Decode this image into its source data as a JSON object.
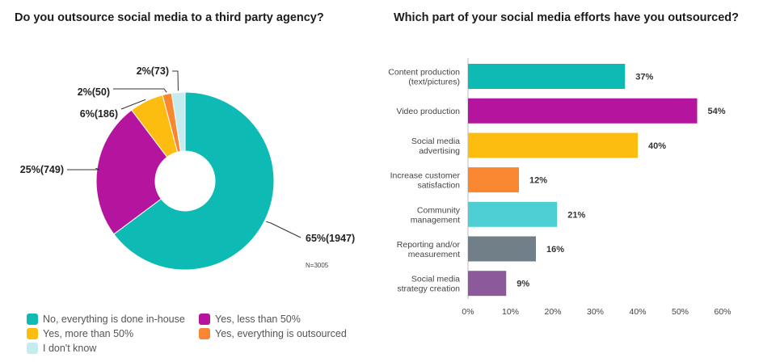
{
  "chart_data": [
    {
      "type": "pie",
      "title": "Do you outsource social media to a third party agency?",
      "note": "N=3005",
      "colors": [
        "#0dbbb4",
        "#b5149e",
        "#fdbd10",
        "#f98731",
        "#c4ecef"
      ],
      "slices": [
        {
          "name": "No, everything is done in-house",
          "value": 1947,
          "label": "65%(1947)"
        },
        {
          "name": "Yes, less than 50%",
          "value": 749,
          "label": "25%(749)"
        },
        {
          "name": "Yes, more than 50%",
          "value": 186,
          "label": "6%(186)"
        },
        {
          "name": "Yes, everything is outsourced",
          "value": 50,
          "label": "2%(50)"
        },
        {
          "name": "I don't know",
          "value": 73,
          "label": "2%(73)"
        }
      ],
      "legend_position": "bottom"
    },
    {
      "type": "bar",
      "orientation": "horizontal",
      "title": "Which part of your social media efforts have you outsourced?",
      "categories": [
        [
          "Content production",
          "(text/pictures)"
        ],
        [
          "Video production"
        ],
        [
          "Social media",
          "advertising"
        ],
        [
          "Increase customer",
          "satisfaction"
        ],
        [
          "Community",
          "management"
        ],
        [
          "Reporting and/or",
          "measurement"
        ],
        [
          "Social media",
          "strategy creation"
        ]
      ],
      "values": [
        37,
        54,
        40,
        12,
        21,
        16,
        9
      ],
      "value_labels": [
        "37%",
        "54%",
        "40%",
        "12%",
        "21%",
        "16%",
        "9%"
      ],
      "colors": [
        "#0dbbb4",
        "#b5149e",
        "#fdbd10",
        "#f98731",
        "#4cced2",
        "#707f88",
        "#8c5a9a"
      ],
      "xlim": [
        0,
        60
      ],
      "ticks": [
        0,
        10,
        20,
        30,
        40,
        50,
        60
      ],
      "tick_labels": [
        "0%",
        "10%",
        "20%",
        "30%",
        "40%",
        "50%",
        "60%"
      ],
      "grid": false
    }
  ]
}
